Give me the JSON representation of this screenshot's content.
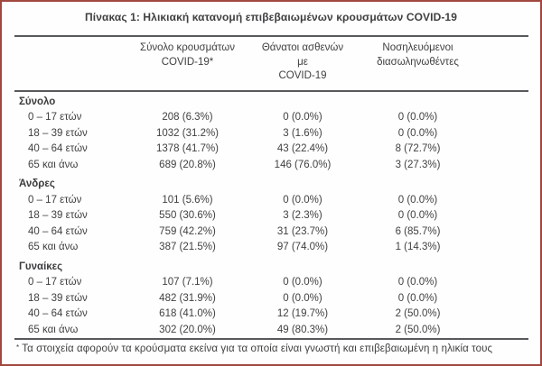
{
  "title": "Πίνακας 1: Ηλικιακή κατανομή επιβεβαιωμένων κρουσμάτων COVID-19",
  "table": {
    "headers": [
      {
        "line1": "Σύνολο κρουσμάτων",
        "line2": "COVID-19*"
      },
      {
        "line1": "Θάνατοι ασθενών με",
        "line2": "COVID-19"
      },
      {
        "line1": "Νοσηλευόμενοι",
        "line2": "διασωληνωθέντες"
      }
    ],
    "sections": [
      {
        "label": "Σύνολο",
        "rows": [
          {
            "label": "0 – 17 ετών",
            "values": [
              "208 (6.3%)",
              "0 (0.0%)",
              "0 (0.0%)"
            ]
          },
          {
            "label": "18 – 39 ετών",
            "values": [
              "1032 (31.2%)",
              "3 (1.6%)",
              "0 (0.0%)"
            ]
          },
          {
            "label": "40 – 64 ετών",
            "values": [
              "1378 (41.7%)",
              "43 (22.4%)",
              "8 (72.7%)"
            ]
          },
          {
            "label": "65 και άνω",
            "values": [
              "689 (20.8%)",
              "146 (76.0%)",
              "3 (27.3%)"
            ]
          }
        ]
      },
      {
        "label": "Άνδρες",
        "rows": [
          {
            "label": "0 – 17 ετών",
            "values": [
              "101 (5.6%)",
              "0 (0.0%)",
              "0 (0.0%)"
            ]
          },
          {
            "label": "18 – 39 ετών",
            "values": [
              "550 (30.6%)",
              "3 (2.3%)",
              "0 (0.0%)"
            ]
          },
          {
            "label": "40 – 64 ετών",
            "values": [
              "759 (42.2%)",
              "31 (23.7%)",
              "6 (85.7%)"
            ]
          },
          {
            "label": "65 και άνω",
            "values": [
              "387 (21.5%)",
              "97 (74.0%)",
              "1 (14.3%)"
            ]
          }
        ]
      },
      {
        "label": "Γυναίκες",
        "rows": [
          {
            "label": "0 – 17 ετών",
            "values": [
              "107 (7.1%)",
              "0 (0.0%)",
              "0 (0.0%)"
            ]
          },
          {
            "label": "18 – 39 ετών",
            "values": [
              "482 (31.9%)",
              "0 (0.0%)",
              "0 (0.0%)"
            ]
          },
          {
            "label": "40 – 64 ετών",
            "values": [
              "618 (41.0%)",
              "12 (19.7%)",
              "2 (50.0%)"
            ]
          },
          {
            "label": "65 και άνω",
            "values": [
              "302 (20.0%)",
              "49 (80.3%)",
              "2 (50.0%)"
            ]
          }
        ]
      }
    ]
  },
  "footnote": {
    "marker": "*",
    "text": "Τα στοιχεία αφορούν τα κρούσματα εκείνα για τα οποία είναι γνωστή και επιβεβαιωμένη η ηλικία τους"
  },
  "colors": {
    "frame_border": "#a1473f",
    "rule": "#58595b",
    "text": "#414042"
  }
}
